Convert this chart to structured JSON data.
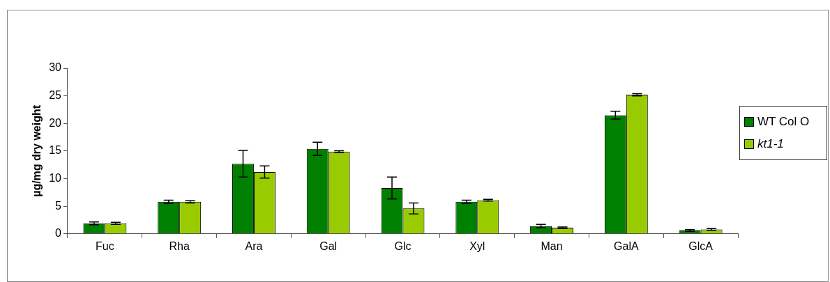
{
  "chart_data": {
    "type": "bar",
    "ylabel": "µg/mg dry weight",
    "categories": [
      "Fuc",
      "Rha",
      "Ara",
      "Gal",
      "Glc",
      "Xyl",
      "Man",
      "GalA",
      "GlcA"
    ],
    "series": [
      {
        "name": "WT Col O",
        "color": "#008000",
        "values": [
          1.9,
          5.8,
          12.7,
          15.4,
          8.3,
          5.8,
          1.4,
          21.5,
          0.6
        ],
        "errors": [
          0.25,
          0.3,
          2.4,
          1.2,
          2.0,
          0.3,
          0.3,
          0.7,
          0.15
        ]
      },
      {
        "name": "kt1-1",
        "color": "#99cc00",
        "values": [
          1.9,
          5.8,
          11.2,
          14.9,
          4.6,
          6.1,
          1.1,
          25.2,
          0.8
        ],
        "errors": [
          0.2,
          0.2,
          1.1,
          0.15,
          1.0,
          0.15,
          0.15,
          0.2,
          0.15
        ]
      }
    ],
    "ylim": [
      0,
      30
    ],
    "yticks": [
      0,
      5,
      10,
      15,
      20,
      25,
      30
    ],
    "grid": false,
    "legend": "right"
  }
}
